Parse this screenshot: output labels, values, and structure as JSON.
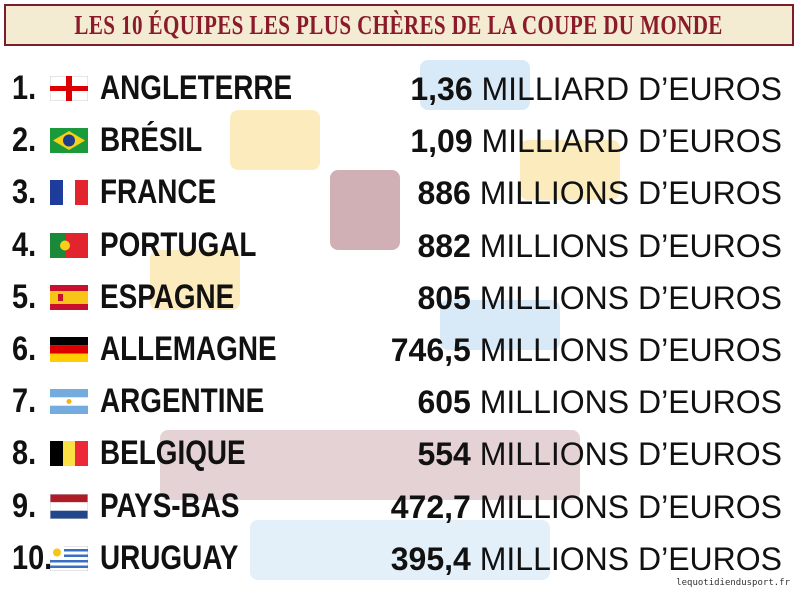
{
  "header": {
    "title": "LES 10 ÉQUIPES LES PLUS CHÈRES DE LA COUPE DU MONDE"
  },
  "rows": [
    {
      "rank": "1.",
      "country": "ANGLETERRE",
      "amount": "1,36",
      "unit": "MILLIARD D’EUROS"
    },
    {
      "rank": "2.",
      "country": "BRÉSIL",
      "amount": "1,09",
      "unit": "MILLIARD D’EUROS"
    },
    {
      "rank": "3.",
      "country": "FRANCE",
      "amount": "886",
      "unit": "MILLIONS D’EUROS"
    },
    {
      "rank": "4.",
      "country": "PORTUGAL",
      "amount": "882",
      "unit": "MILLIONS D’EUROS"
    },
    {
      "rank": "5.",
      "country": "ESPAGNE",
      "amount": "805",
      "unit": "MILLIONS D’EUROS"
    },
    {
      "rank": "6.",
      "country": "ALLEMAGNE",
      "amount": "746,5",
      "unit": "MILLIONS D’EUROS"
    },
    {
      "rank": "7.",
      "country": "ARGENTINE",
      "amount": "605",
      "unit": "MILLIONS D’EUROS"
    },
    {
      "rank": "8.",
      "country": "BELGIQUE",
      "amount": "554",
      "unit": "MILLIONS D’EUROS"
    },
    {
      "rank": "9.",
      "country": "PAYS-BAS",
      "amount": "472,7",
      "unit": "MILLIONS D’EUROS"
    },
    {
      "rank": "10.",
      "country": "URUGUAY",
      "amount": "395,4",
      "unit": "MILLIONS D’EUROS"
    }
  ],
  "footer": {
    "source": "lequotidiendusport.fr"
  }
}
